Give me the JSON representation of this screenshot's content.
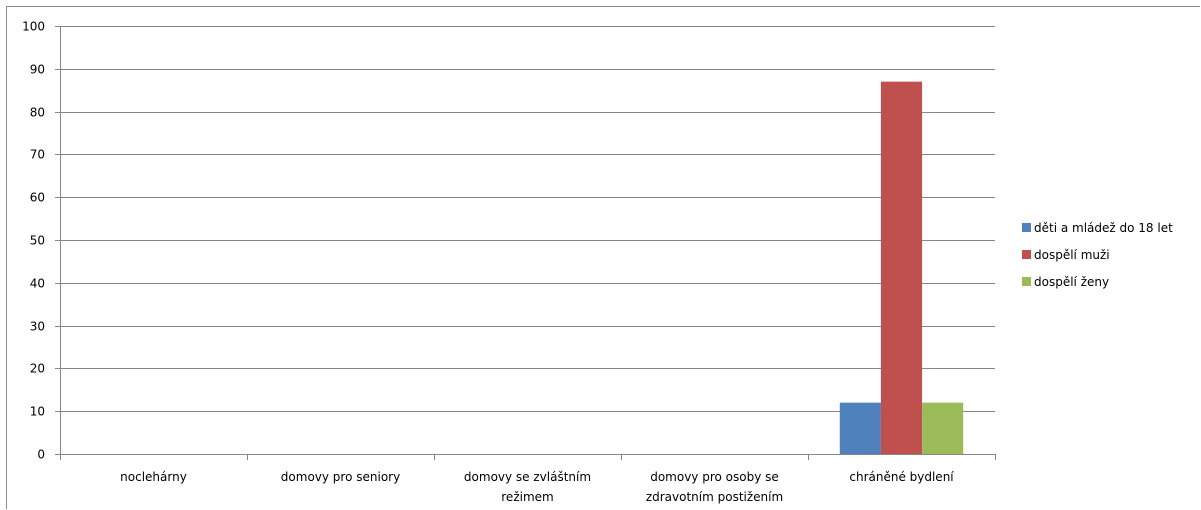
{
  "chart_data": {
    "type": "bar",
    "categories": [
      [
        "noclehárny"
      ],
      [
        "domovy pro seniory"
      ],
      [
        "domovy se zvláštním",
        "režimem"
      ],
      [
        "domovy pro osoby se",
        "zdravotním postižením"
      ],
      [
        "chráněné bydlení"
      ]
    ],
    "series": [
      {
        "name": "děti a mládež do 18 let",
        "color": "#4f81bd",
        "values": [
          0,
          0,
          0,
          0,
          12
        ]
      },
      {
        "name": "dospělí muži",
        "color": "#c0504d",
        "values": [
          0,
          0,
          0,
          0,
          87
        ]
      },
      {
        "name": "dospělí ženy",
        "color": "#9bbb59",
        "values": [
          0,
          0,
          0,
          0,
          12
        ]
      }
    ],
    "ylim": [
      0,
      100
    ],
    "yticks": [
      "0",
      "10",
      "20",
      "30",
      "40",
      "50",
      "60",
      "70",
      "80",
      "90",
      "100"
    ],
    "grid": true,
    "legend_position": "right"
  }
}
